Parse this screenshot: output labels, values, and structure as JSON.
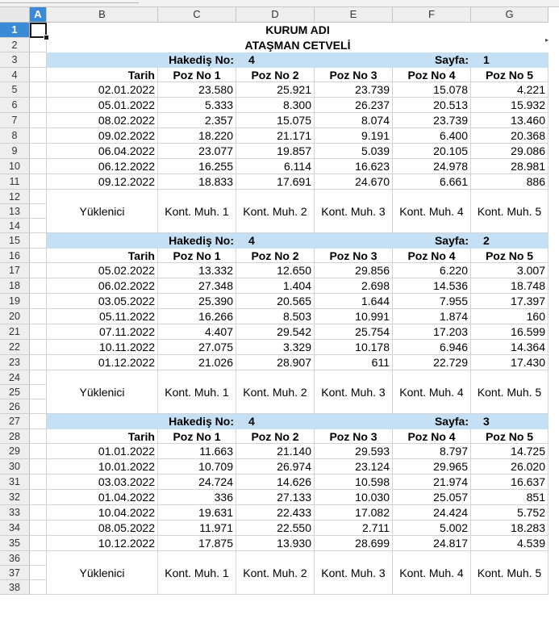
{
  "sheet": {
    "columns": [
      "A",
      "B",
      "C",
      "D",
      "E",
      "F",
      "G"
    ],
    "selected_column": "A",
    "selected_row": 1,
    "row_count": 38
  },
  "titles": {
    "company": "KURUM ADI",
    "doc": "ATAŞMAN CETVELİ"
  },
  "labels": {
    "hakedis": "Hakediş No:",
    "sayfa": "Sayfa:",
    "tarih": "Tarih",
    "poz": [
      "Poz No 1",
      "Poz No 2",
      "Poz No 3",
      "Poz No 4",
      "Poz No 5"
    ],
    "yuklenici": "Yüklenici",
    "kont": [
      "Kont. Muh. 1",
      "Kont. Muh. 2",
      "Kont. Muh. 3",
      "Kont. Muh. 4",
      "Kont. Muh. 5"
    ]
  },
  "sections": [
    {
      "hakedis_no": "4",
      "sayfa_no": "1",
      "rows": [
        [
          "02.01.2022",
          "23.580",
          "25.921",
          "23.739",
          "15.078",
          "4.221"
        ],
        [
          "05.01.2022",
          "5.333",
          "8.300",
          "26.237",
          "20.513",
          "15.932"
        ],
        [
          "08.02.2022",
          "2.357",
          "15.075",
          "8.074",
          "23.739",
          "13.460"
        ],
        [
          "09.02.2022",
          "18.220",
          "21.171",
          "9.191",
          "6.400",
          "20.368"
        ],
        [
          "06.04.2022",
          "23.077",
          "19.857",
          "5.039",
          "20.105",
          "29.086"
        ],
        [
          "06.12.2022",
          "16.255",
          "6.114",
          "16.623",
          "24.978",
          "28.981"
        ],
        [
          "09.12.2022",
          "18.833",
          "17.691",
          "24.670",
          "6.661",
          "886"
        ]
      ]
    },
    {
      "hakedis_no": "4",
      "sayfa_no": "2",
      "rows": [
        [
          "05.02.2022",
          "13.332",
          "12.650",
          "29.856",
          "6.220",
          "3.007"
        ],
        [
          "06.02.2022",
          "27.348",
          "1.404",
          "2.698",
          "14.536",
          "18.748"
        ],
        [
          "03.05.2022",
          "25.390",
          "20.565",
          "1.644",
          "7.955",
          "17.397"
        ],
        [
          "05.11.2022",
          "16.266",
          "8.503",
          "10.991",
          "1.874",
          "160"
        ],
        [
          "07.11.2022",
          "4.407",
          "29.542",
          "25.754",
          "17.203",
          "16.599"
        ],
        [
          "10.11.2022",
          "27.075",
          "3.329",
          "10.178",
          "6.946",
          "14.364"
        ],
        [
          "01.12.2022",
          "21.026",
          "28.907",
          "611",
          "22.729",
          "17.430"
        ]
      ]
    },
    {
      "hakedis_no": "4",
      "sayfa_no": "3",
      "rows": [
        [
          "01.01.2022",
          "11.663",
          "21.140",
          "29.593",
          "8.797",
          "14.725"
        ],
        [
          "10.01.2022",
          "10.709",
          "26.974",
          "23.124",
          "29.965",
          "26.020"
        ],
        [
          "03.03.2022",
          "24.724",
          "14.626",
          "10.598",
          "21.974",
          "16.637"
        ],
        [
          "01.04.2022",
          "336",
          "27.133",
          "10.030",
          "25.057",
          "851"
        ],
        [
          "10.04.2022",
          "19.631",
          "22.433",
          "17.082",
          "24.424",
          "5.752"
        ],
        [
          "08.05.2022",
          "11.971",
          "22.550",
          "2.711",
          "5.002",
          "18.283"
        ],
        [
          "10.12.2022",
          "17.875",
          "13.930",
          "28.699",
          "24.817",
          "4.539"
        ]
      ]
    }
  ],
  "colors": {
    "header_band": "#c5e0f4",
    "selection": "#3b8ad8"
  }
}
